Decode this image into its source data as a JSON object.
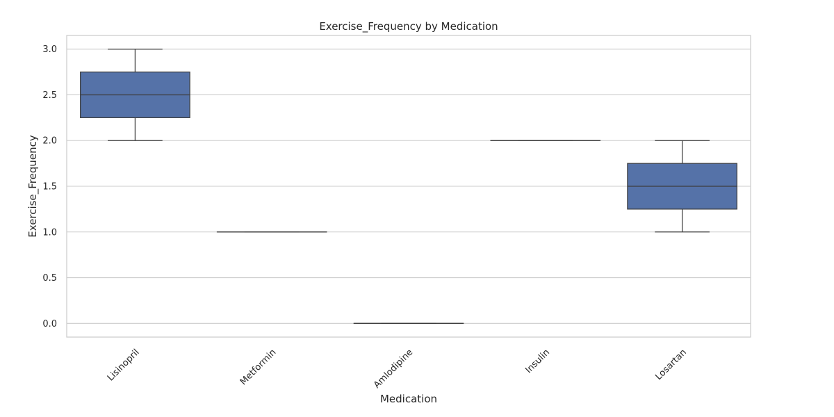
{
  "chart_data": {
    "type": "box",
    "title": "Exercise_Frequency by Medication",
    "xlabel": "Medication",
    "ylabel": "Exercise_Frequency",
    "ylim": [
      -0.15,
      3.15
    ],
    "yticks": [
      0.0,
      0.5,
      1.0,
      1.5,
      2.0,
      2.5,
      3.0
    ],
    "ytick_labels": [
      "0.0",
      "0.5",
      "1.0",
      "1.5",
      "2.0",
      "2.5",
      "3.0"
    ],
    "grid": true,
    "box_color": "#5572a8",
    "line_color": "#3d3d3d",
    "categories": [
      "Lisinopril",
      "Metformin",
      "Amlodipine",
      "Insulin",
      "Losartan"
    ],
    "boxes": [
      {
        "whisker_low": 2.0,
        "q1": 2.25,
        "median": 2.5,
        "q3": 2.75,
        "whisker_high": 3.0
      },
      {
        "whisker_low": 1.0,
        "q1": 1.0,
        "median": 1.0,
        "q3": 1.0,
        "whisker_high": 1.0
      },
      {
        "whisker_low": 0.0,
        "q1": 0.0,
        "median": 0.0,
        "q3": 0.0,
        "whisker_high": 0.0
      },
      {
        "whisker_low": 2.0,
        "q1": 2.0,
        "median": 2.0,
        "q3": 2.0,
        "whisker_high": 2.0
      },
      {
        "whisker_low": 1.0,
        "q1": 1.25,
        "median": 1.5,
        "q3": 1.75,
        "whisker_high": 2.0
      }
    ]
  }
}
